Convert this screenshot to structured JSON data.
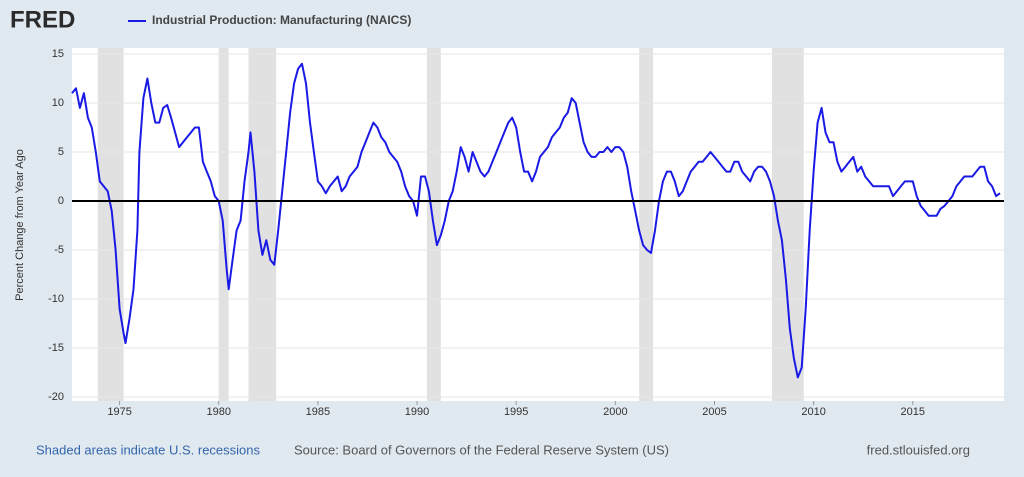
{
  "chart_data": {
    "type": "line",
    "logo": "FRED",
    "y_label": "Percent Change from Year Ago",
    "footer": {
      "recession_note": "Shaded areas indicate U.S. recessions",
      "source": "Source: Board of Governors of the Federal Reserve System (US)",
      "site": "fred.stlouisfed.org"
    },
    "xlim": [
      1972.6,
      2019.6
    ],
    "xticks": [
      1975,
      1980,
      1985,
      1990,
      1995,
      2000,
      2005,
      2010,
      2015
    ],
    "ylim": [
      -20,
      15
    ],
    "yticks": [
      -20,
      -15,
      -10,
      -5,
      0,
      5,
      10,
      15
    ],
    "grid": true,
    "recession_color": "#e1e1e1",
    "recessions": [
      [
        1973.9,
        1975.2
      ],
      [
        1980.0,
        1980.5
      ],
      [
        1981.5,
        1982.9
      ],
      [
        1990.5,
        1991.2
      ],
      [
        2001.2,
        2001.9
      ],
      [
        2007.9,
        2009.5
      ]
    ],
    "x": [
      1972.6,
      1972.8,
      1973.0,
      1973.2,
      1973.4,
      1973.6,
      1973.8,
      1974.0,
      1974.2,
      1974.4,
      1974.6,
      1974.8,
      1975.0,
      1975.2,
      1975.3,
      1975.5,
      1975.7,
      1975.9,
      1976.0,
      1976.2,
      1976.4,
      1976.6,
      1976.8,
      1977.0,
      1977.2,
      1977.4,
      1977.6,
      1977.8,
      1978.0,
      1978.2,
      1978.4,
      1978.6,
      1978.8,
      1979.0,
      1979.2,
      1979.4,
      1979.6,
      1979.8,
      1980.0,
      1980.2,
      1980.4,
      1980.5,
      1980.7,
      1980.9,
      1981.1,
      1981.3,
      1981.5,
      1981.6,
      1981.8,
      1982.0,
      1982.2,
      1982.4,
      1982.6,
      1982.8,
      1983.0,
      1983.2,
      1983.4,
      1983.6,
      1983.8,
      1984.0,
      1984.2,
      1984.4,
      1984.6,
      1984.8,
      1985.0,
      1985.2,
      1985.4,
      1985.6,
      1985.8,
      1986.0,
      1986.2,
      1986.4,
      1986.6,
      1986.8,
      1987.0,
      1987.2,
      1987.4,
      1987.6,
      1987.8,
      1988.0,
      1988.2,
      1988.4,
      1988.6,
      1988.8,
      1989.0,
      1989.2,
      1989.4,
      1989.6,
      1989.8,
      1990.0,
      1990.2,
      1990.4,
      1990.6,
      1990.8,
      1991.0,
      1991.2,
      1991.4,
      1991.6,
      1991.8,
      1992.0,
      1992.2,
      1992.4,
      1992.6,
      1992.8,
      1993.0,
      1993.2,
      1993.4,
      1993.6,
      1993.8,
      1994.0,
      1994.2,
      1994.4,
      1994.6,
      1994.8,
      1995.0,
      1995.2,
      1995.4,
      1995.6,
      1995.8,
      1996.0,
      1996.2,
      1996.4,
      1996.6,
      1996.8,
      1997.0,
      1997.2,
      1997.4,
      1997.6,
      1997.8,
      1998.0,
      1998.2,
      1998.4,
      1998.6,
      1998.8,
      1999.0,
      1999.2,
      1999.4,
      1999.6,
      1999.8,
      2000.0,
      2000.2,
      2000.4,
      2000.6,
      2000.8,
      2001.0,
      2001.2,
      2001.4,
      2001.6,
      2001.8,
      2002.0,
      2002.2,
      2002.4,
      2002.6,
      2002.8,
      2003.0,
      2003.2,
      2003.4,
      2003.6,
      2003.8,
      2004.0,
      2004.2,
      2004.4,
      2004.6,
      2004.8,
      2005.0,
      2005.2,
      2005.4,
      2005.6,
      2005.8,
      2006.0,
      2006.2,
      2006.4,
      2006.6,
      2006.8,
      2007.0,
      2007.2,
      2007.4,
      2007.6,
      2007.8,
      2008.0,
      2008.2,
      2008.4,
      2008.6,
      2008.8,
      2009.0,
      2009.2,
      2009.4,
      2009.6,
      2009.8,
      2010.0,
      2010.2,
      2010.4,
      2010.6,
      2010.8,
      2011.0,
      2011.2,
      2011.4,
      2011.6,
      2011.8,
      2012.0,
      2012.2,
      2012.4,
      2012.6,
      2012.8,
      2013.0,
      2013.2,
      2013.4,
      2013.6,
      2013.8,
      2014.0,
      2014.2,
      2014.4,
      2014.6,
      2014.8,
      2015.0,
      2015.2,
      2015.4,
      2015.6,
      2015.8,
      2016.0,
      2016.2,
      2016.4,
      2016.6,
      2016.8,
      2017.0,
      2017.2,
      2017.4,
      2017.6,
      2017.8,
      2018.0,
      2018.2,
      2018.4,
      2018.6,
      2018.8,
      2019.0,
      2019.2,
      2019.4
    ],
    "series": [
      {
        "name": "Industrial Production: Manufacturing (NAICS)",
        "color": "#1a1ae6",
        "values": [
          11,
          11.5,
          9.5,
          11,
          8.5,
          7.5,
          5,
          2,
          1.5,
          1,
          -1,
          -5,
          -11,
          -13.5,
          -14.5,
          -12,
          -9,
          -3,
          5,
          10.5,
          12.5,
          10,
          8,
          8,
          9.5,
          9.8,
          8.5,
          7,
          5.5,
          6,
          6.5,
          7,
          7.5,
          7.5,
          4,
          3,
          2,
          0.5,
          0,
          -2,
          -7,
          -9,
          -6,
          -3,
          -2,
          2,
          5,
          7,
          3,
          -3,
          -5.5,
          -4,
          -6,
          -6.5,
          -3,
          1,
          5,
          9,
          12,
          13.5,
          14,
          12,
          8,
          5,
          2,
          1.5,
          0.8,
          1.5,
          2,
          2.5,
          1,
          1.5,
          2.5,
          3,
          3.5,
          5,
          6,
          7,
          8,
          7.5,
          6.5,
          6,
          5,
          4.5,
          4,
          3,
          1.5,
          0.5,
          0,
          -1.5,
          2.5,
          2.5,
          1,
          -2,
          -4.5,
          -3.5,
          -2,
          0,
          1,
          3,
          5.5,
          4.5,
          3,
          5,
          4,
          3,
          2.5,
          3,
          4,
          5,
          6,
          7,
          8,
          8.5,
          7.5,
          5,
          3,
          3,
          2,
          3,
          4.5,
          5,
          5.5,
          6.5,
          7,
          7.5,
          8.5,
          9,
          10.5,
          10,
          8,
          6,
          5,
          4.5,
          4.5,
          5,
          5,
          5.5,
          5,
          5.5,
          5.5,
          5,
          3.5,
          1,
          -1,
          -3,
          -4.5,
          -5,
          -5.3,
          -3,
          0,
          2,
          3,
          3,
          2,
          0.5,
          1,
          2,
          3,
          3.5,
          4,
          4,
          4.5,
          5,
          4.5,
          4,
          3.5,
          3,
          3,
          4,
          4,
          3,
          2.5,
          2,
          3,
          3.5,
          3.5,
          3,
          2,
          0.5,
          -2,
          -4,
          -8,
          -13,
          -16,
          -18,
          -17,
          -11,
          -3,
          3,
          8,
          9.5,
          7,
          6,
          6,
          4,
          3,
          3.5,
          4,
          4.5,
          3,
          3.5,
          2.5,
          2,
          1.5,
          1.5,
          1.5,
          1.5,
          1.5,
          0.5,
          1,
          1.5,
          2,
          2,
          2,
          0.5,
          -0.5,
          -1,
          -1.5,
          -1.5,
          -1.5,
          -0.8,
          -0.5,
          0,
          0.5,
          1.5,
          2,
          2.5,
          2.5,
          2.5,
          3,
          3.5,
          3.5,
          2,
          1.5,
          0.5,
          0.8
        ]
      }
    ]
  }
}
